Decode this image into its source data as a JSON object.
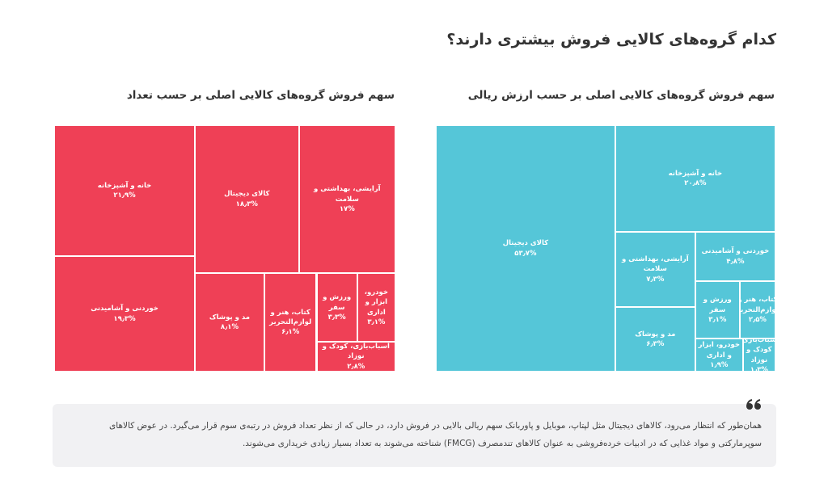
{
  "title": "کدام گروه‌های کالایی فروش بیشتری دارند؟",
  "chart_data": [
    {
      "type": "treemap",
      "title": "سهم فروش گروه‌های کالایی اصلی بر حسب ارزش ریالی",
      "color": "#55c6d8",
      "categories": [
        "کالای دیجیتال",
        "خانه و آشپزخانه",
        "آرایشی، بهداشتی و سلامت",
        "مد و پوشاک",
        "خوردنی و آشامیدنی",
        "ورزش و سفر",
        "کتاب، هنر و لوازم‌التحریر",
        "خودرو، ابزار و اداری",
        "اسباب‌بازی، کودک و نوزاد"
      ],
      "values": [
        53.7,
        20.8,
        7.3,
        6.3,
        4.8,
        3.1,
        2.5,
        1.9,
        1.3
      ],
      "value_labels": [
        "۵۳٫۷%",
        "۲۰٫۸%",
        "۷٫۳%",
        "۶٫۳%",
        "۴٫۸%",
        "۳٫۱%",
        "۲٫۵%",
        "۱٫۹%",
        "۱٫۳%"
      ]
    },
    {
      "type": "treemap",
      "title": "سهم فروش گروه‌های کالایی اصلی بر حسب تعداد",
      "color": "#ef4056",
      "categories": [
        "خانه و آشپزخانه",
        "خوردنی و آشامیدنی",
        "کالای دیجیتال",
        "آرایشی، بهداشتی و سلامت",
        "مد و پوشاک",
        "کتاب، هنر و لوازم‌التحریر",
        "ورزش و سفر",
        "خودرو، ابزار و اداری",
        "اسباب‌بازی، کودک و نوزاد"
      ],
      "values": [
        21.9,
        19.3,
        18.3,
        17,
        8.1,
        6.1,
        3.3,
        3.1,
        2.8
      ],
      "value_labels": [
        "۲۱٫۹%",
        "۱۹٫۳%",
        "۱۸٫۳%",
        "۱۷%",
        "۸٫۱%",
        "۶٫۱%",
        "۳٫۳%",
        "۳٫۱%",
        "۲٫۸%"
      ]
    }
  ],
  "note": "همان‌طور که انتظار می‌رود، کالاهای دیجیتال مثل لپتاپ، موبایل و پاوربانک سهم ریالی بالایی در فروش دارد، در حالی که از نظر تعداد فروش در رتبه‌ی سوم قرار می‌گیرد. در عوض کالاهای سوپرمارکتی و مواد غذایی که در ادبیات خرده‌فروشی به عنوان کالاهای تندمصرف (FMCG) شناخته می‌شوند به تعداد بسیار زیادی خریداری می‌شوند."
}
